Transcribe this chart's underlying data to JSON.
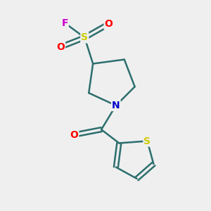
{
  "background_color": "#efefef",
  "bond_color": "#2d6e6e",
  "bond_width": 1.8,
  "atom_colors": {
    "S_sulfonyl": "#cccc00",
    "S_thiophene": "#cccc00",
    "O": "#ff0000",
    "N": "#0000cc",
    "F": "#cc00cc",
    "C": "#2d6e6e"
  },
  "figsize": [
    3.0,
    3.0
  ],
  "dpi": 100
}
